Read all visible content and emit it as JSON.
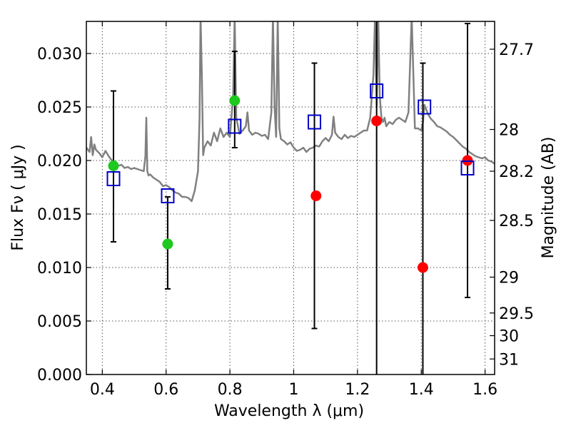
{
  "chart_data": {
    "type": "scatter",
    "xlabel": "Wavelength  λ (μm)",
    "ylabel_left": "Flux  Fν  ( μJy )",
    "ylabel_right": "Magnitude (AB)",
    "xlim": [
      0.35,
      1.63
    ],
    "ylim": [
      0.0,
      0.033
    ],
    "grid": true,
    "x_ticks": [
      0.4,
      0.6,
      0.8,
      1.0,
      1.2,
      1.4,
      1.6
    ],
    "x_tick_labels": [
      "0.4",
      "0.6",
      "0.8",
      "1",
      "1.2",
      "1.4",
      "1.6"
    ],
    "y_ticks": [
      0.0,
      0.005,
      0.01,
      0.015,
      0.02,
      0.025,
      0.03
    ],
    "y_tick_labels": [
      "0.000",
      "0.005",
      "0.010",
      "0.015",
      "0.020",
      "0.025",
      "0.030"
    ],
    "right_ticks": [
      {
        "label": "27.7",
        "flux": 0.0304
      },
      {
        "label": "28",
        "flux": 0.0229
      },
      {
        "label": "28.2",
        "flux": 0.019
      },
      {
        "label": "28.5",
        "flux": 0.0144
      },
      {
        "label": "29",
        "flux": 0.0091
      },
      {
        "label": "29.5",
        "flux": 0.00575
      },
      {
        "label": "30",
        "flux": 0.00363
      },
      {
        "label": "31",
        "flux": 0.00145
      }
    ],
    "series": [
      {
        "kind": "line",
        "color": "#808080",
        "x": [
          0.35,
          0.36,
          0.365,
          0.37,
          0.375,
          0.38,
          0.39,
          0.4,
          0.41,
          0.42,
          0.43,
          0.44,
          0.45,
          0.46,
          0.47,
          0.48,
          0.49,
          0.5,
          0.51,
          0.52,
          0.53,
          0.535,
          0.538,
          0.541,
          0.545,
          0.55,
          0.56,
          0.57,
          0.58,
          0.59,
          0.6,
          0.61,
          0.62,
          0.63,
          0.64,
          0.65,
          0.66,
          0.67,
          0.68,
          0.69,
          0.7,
          0.705,
          0.708,
          0.712,
          0.716,
          0.72,
          0.73,
          0.74,
          0.75,
          0.76,
          0.77,
          0.78,
          0.79,
          0.8,
          0.81,
          0.815,
          0.82,
          0.83,
          0.84,
          0.85,
          0.855,
          0.86,
          0.87,
          0.88,
          0.89,
          0.9,
          0.91,
          0.92,
          0.93,
          0.935,
          0.94,
          0.945,
          0.95,
          0.955,
          0.96,
          0.97,
          0.98,
          0.99,
          1.0,
          1.01,
          1.02,
          1.03,
          1.04,
          1.05,
          1.06,
          1.07,
          1.08,
          1.09,
          1.1,
          1.11,
          1.12,
          1.125,
          1.13,
          1.14,
          1.15,
          1.16,
          1.17,
          1.18,
          1.19,
          1.2,
          1.21,
          1.22,
          1.23,
          1.24,
          1.25,
          1.255,
          1.26,
          1.265,
          1.27,
          1.275,
          1.28,
          1.285,
          1.29,
          1.3,
          1.31,
          1.32,
          1.33,
          1.34,
          1.35,
          1.36,
          1.37,
          1.38,
          1.39,
          1.4,
          1.405,
          1.41,
          1.42,
          1.43,
          1.44,
          1.45,
          1.46,
          1.47,
          1.48,
          1.49,
          1.5,
          1.51,
          1.52,
          1.53,
          1.54,
          1.55,
          1.56,
          1.57,
          1.58,
          1.59,
          1.6,
          1.61,
          1.62,
          1.63
        ],
        "y": [
          0.0212,
          0.0208,
          0.0222,
          0.0205,
          0.0215,
          0.021,
          0.0207,
          0.0203,
          0.0209,
          0.0204,
          0.02,
          0.0198,
          0.0195,
          0.0196,
          0.0193,
          0.0194,
          0.0192,
          0.0193,
          0.0192,
          0.0191,
          0.019,
          0.0204,
          0.024,
          0.019,
          0.0186,
          0.0187,
          0.0184,
          0.0182,
          0.018,
          0.0176,
          0.0177,
          0.0175,
          0.0172,
          0.017,
          0.0169,
          0.0166,
          0.0166,
          0.0165,
          0.0162,
          0.0172,
          0.019,
          0.024,
          0.0335,
          0.028,
          0.0205,
          0.0212,
          0.0218,
          0.0214,
          0.0226,
          0.0218,
          0.023,
          0.0222,
          0.0226,
          0.0222,
          0.026,
          0.0335,
          0.024,
          0.0225,
          0.0228,
          0.0232,
          0.0245,
          0.0228,
          0.0224,
          0.0226,
          0.0225,
          0.0223,
          0.0224,
          0.022,
          0.0245,
          0.0335,
          0.025,
          0.0222,
          0.0335,
          0.023,
          0.022,
          0.0218,
          0.0215,
          0.0217,
          0.0212,
          0.0209,
          0.021,
          0.0212,
          0.0208,
          0.0211,
          0.0212,
          0.0214,
          0.0213,
          0.0218,
          0.0221,
          0.0218,
          0.0224,
          0.0241,
          0.0226,
          0.0222,
          0.022,
          0.0224,
          0.0221,
          0.0223,
          0.0222,
          0.0224,
          0.0226,
          0.0228,
          0.0228,
          0.024,
          0.028,
          0.0335,
          0.025,
          0.0335,
          0.026,
          0.024,
          0.0236,
          0.024,
          0.0232,
          0.0236,
          0.0234,
          0.0238,
          0.024,
          0.0238,
          0.0236,
          0.0245,
          0.0335,
          0.023,
          0.023,
          0.0228,
          0.0235,
          0.0252,
          0.0244,
          0.0239,
          0.0236,
          0.0232,
          0.0231,
          0.0229,
          0.0227,
          0.0224,
          0.0222,
          0.0219,
          0.0216,
          0.0213,
          0.0211,
          0.0208,
          0.0206,
          0.0204,
          0.0203,
          0.0202,
          0.0203,
          0.02,
          0.0199,
          0.0197
        ]
      },
      {
        "kind": "errorbar",
        "color": "#000000",
        "x": [
          0.435,
          0.605,
          0.815,
          1.065,
          1.26,
          1.405,
          1.545
        ],
        "ylow": [
          0.0124,
          0.008,
          0.0212,
          0.0043,
          0.0,
          0.0,
          0.0072
        ],
        "yhigh": [
          0.0265,
          0.0166,
          0.0302,
          0.0291,
          0.0335,
          0.0291,
          0.0328
        ]
      },
      {
        "kind": "marker",
        "shape": "circle",
        "color": "#1ec81e",
        "x": [
          0.435,
          0.605,
          0.815
        ],
        "y": [
          0.0195,
          0.0122,
          0.0256
        ]
      },
      {
        "kind": "marker",
        "shape": "circle",
        "color": "#ff0000",
        "x": [
          1.07,
          1.26,
          1.405,
          1.545
        ],
        "y": [
          0.0167,
          0.0237,
          0.01,
          0.02
        ]
      },
      {
        "kind": "marker",
        "shape": "square",
        "color": "#0000cc",
        "x": [
          0.435,
          0.605,
          0.815,
          1.065,
          1.26,
          1.41,
          1.545
        ],
        "y": [
          0.0183,
          0.0167,
          0.0232,
          0.0236,
          0.0265,
          0.025,
          0.0193
        ]
      }
    ]
  }
}
